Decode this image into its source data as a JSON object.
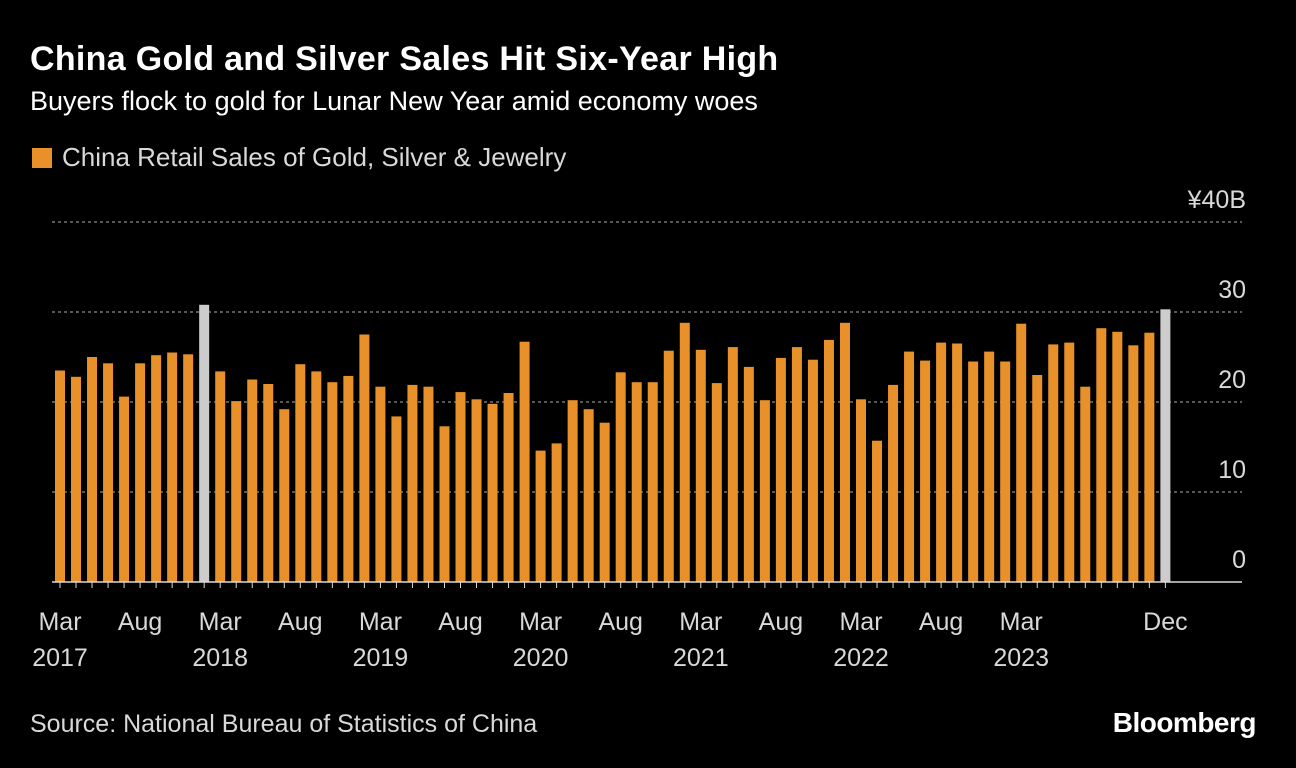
{
  "header": {
    "title": "China Gold and Silver Sales Hit Six-Year High",
    "subtitle": "Buyers flock to gold for Lunar New Year amid economy woes"
  },
  "footer": {
    "source": "Source: National Bureau of Statistics of China",
    "brand": "Bloomberg"
  },
  "colors": {
    "background": "#000000",
    "bar": "#e8902a",
    "highlight": "#cccccc",
    "grid": "#8c8c8c",
    "text": "#ffffff",
    "muted": "#d9d9d9"
  },
  "chart_data": {
    "type": "bar",
    "title": "China Gold and Silver Sales Hit Six-Year High",
    "subtitle": "Buyers flock to gold for Lunar New Year amid economy woes",
    "legend": [
      {
        "label": "China Retail Sales of Gold, Silver & Jewelry",
        "color": "#e8902a"
      }
    ],
    "xlabel": "",
    "ylabel": "",
    "y_unit_label": "¥40B",
    "ylim": [
      0,
      40
    ],
    "yticks": [
      {
        "value": 0,
        "label": "0"
      },
      {
        "value": 10,
        "label": "10"
      },
      {
        "value": 20,
        "label": "20"
      },
      {
        "value": 30,
        "label": "30"
      },
      {
        "value": 40,
        "label": "¥40B"
      }
    ],
    "grid": true,
    "x_tick_labels": [
      {
        "index": 0,
        "month": "Mar",
        "year": "2017"
      },
      {
        "index": 5,
        "month": "Aug",
        "year": ""
      },
      {
        "index": 10,
        "month": "Mar",
        "year": "2018"
      },
      {
        "index": 15,
        "month": "Aug",
        "year": ""
      },
      {
        "index": 20,
        "month": "Mar",
        "year": "2019"
      },
      {
        "index": 25,
        "month": "Aug",
        "year": ""
      },
      {
        "index": 30,
        "month": "Mar",
        "year": "2020"
      },
      {
        "index": 35,
        "month": "Aug",
        "year": ""
      },
      {
        "index": 40,
        "month": "Mar",
        "year": "2021"
      },
      {
        "index": 45,
        "month": "Aug",
        "year": ""
      },
      {
        "index": 50,
        "month": "Mar",
        "year": "2022"
      },
      {
        "index": 55,
        "month": "Aug",
        "year": ""
      },
      {
        "index": 60,
        "month": "Mar",
        "year": "2023"
      },
      {
        "index": 69,
        "month": "Dec",
        "year": ""
      }
    ],
    "categories": [
      "Mar 2017",
      "Apr 2017",
      "May 2017",
      "Jun 2017",
      "Jul 2017",
      "Aug 2017",
      "Sep 2017",
      "Oct 2017",
      "Nov 2017",
      "Dec 2017",
      "Mar 2018",
      "Apr 2018",
      "May 2018",
      "Jun 2018",
      "Jul 2018",
      "Aug 2018",
      "Sep 2018",
      "Oct 2018",
      "Nov 2018",
      "Dec 2018",
      "Mar 2019",
      "Apr 2019",
      "May 2019",
      "Jun 2019",
      "Jul 2019",
      "Aug 2019",
      "Sep 2019",
      "Oct 2019",
      "Nov 2019",
      "Dec 2019",
      "Mar 2020",
      "Apr 2020",
      "May 2020",
      "Jun 2020",
      "Jul 2020",
      "Aug 2020",
      "Sep 2020",
      "Oct 2020",
      "Nov 2020",
      "Dec 2020",
      "Mar 2021",
      "Apr 2021",
      "May 2021",
      "Jun 2021",
      "Jul 2021",
      "Aug 2021",
      "Sep 2021",
      "Oct 2021",
      "Nov 2021",
      "Dec 2021",
      "Mar 2022",
      "Apr 2022",
      "May 2022",
      "Jun 2022",
      "Jul 2022",
      "Aug 2022",
      "Sep 2022",
      "Oct 2022",
      "Nov 2022",
      "Dec 2022",
      "Mar 2023",
      "Apr 2023",
      "May 2023",
      "Jun 2023",
      "Jul 2023",
      "Aug 2023",
      "Sep 2023",
      "Oct 2023",
      "Nov 2023",
      "Dec 2023"
    ],
    "values": [
      23.5,
      22.8,
      25.0,
      24.3,
      20.6,
      24.3,
      25.2,
      25.5,
      25.3,
      30.8,
      23.4,
      20.1,
      22.5,
      22.0,
      19.2,
      24.2,
      23.4,
      22.2,
      22.9,
      27.5,
      21.7,
      18.4,
      21.9,
      21.7,
      17.3,
      21.1,
      20.3,
      19.8,
      21.0,
      26.7,
      14.6,
      15.4,
      20.2,
      19.2,
      17.7,
      23.3,
      22.2,
      22.2,
      25.7,
      28.8,
      25.8,
      22.1,
      26.1,
      23.9,
      20.2,
      24.9,
      26.1,
      24.7,
      26.9,
      28.8,
      20.3,
      15.7,
      21.9,
      25.6,
      24.6,
      26.6,
      26.5,
      24.5,
      25.6,
      24.5,
      28.7,
      23.0,
      26.4,
      26.6,
      21.7,
      28.2,
      27.8,
      26.3,
      27.7,
      30.3
    ],
    "highlighted": [
      "Dec 2017",
      "Dec 2023"
    ]
  }
}
